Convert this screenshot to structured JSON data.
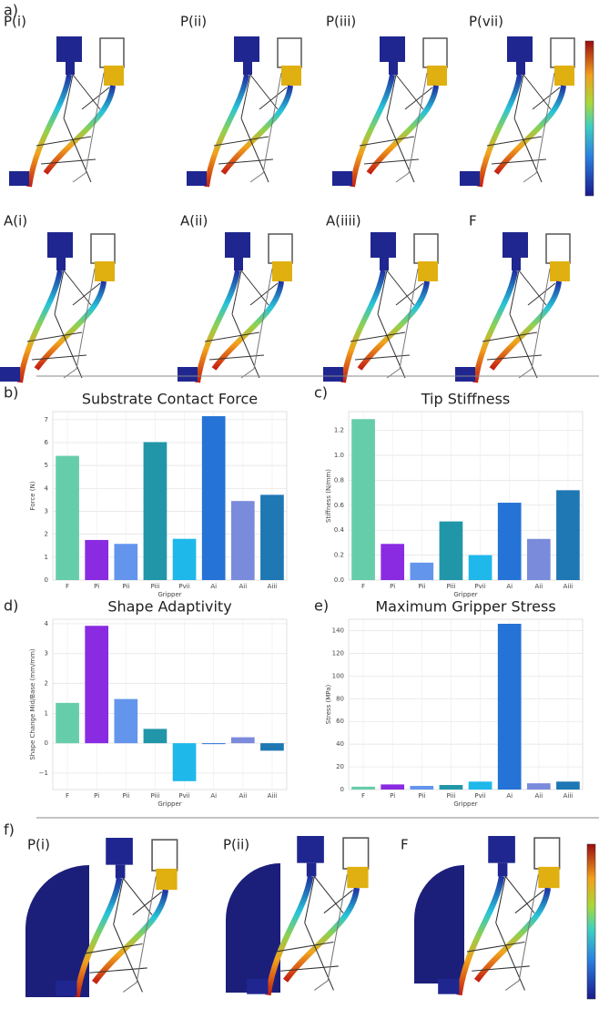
{
  "panels": {
    "a": "a)",
    "b": "b)",
    "c": "c)",
    "d": "d)",
    "e": "e)",
    "f": "f)"
  },
  "panel_a_images": [
    "P(i)",
    "P(ii)",
    "P(iii)",
    "P(vii)",
    "A(i)",
    "A(ii)",
    "A(iiii)",
    "F"
  ],
  "panel_f_images": [
    "P(i)",
    "P(ii)",
    "F"
  ],
  "chart_data": [
    {
      "type": "bar",
      "title": "Substrate Contact Force",
      "x_label": "Gripper",
      "y_label": "Force (N)",
      "categories": [
        "F",
        "Pi",
        "Pii",
        "Piii",
        "Pvii",
        "Ai",
        "Aii",
        "Aiii"
      ],
      "values": [
        5.42,
        1.75,
        1.58,
        6.02,
        1.8,
        7.15,
        3.45,
        3.72
      ],
      "colors": [
        "#66cdaa",
        "#8a2be2",
        "#6495ed",
        "#2196a8",
        "#1eb8ea",
        "#2573d6",
        "#7b8bdb",
        "#1f77b4"
      ],
      "ylim": [
        0,
        7.35
      ],
      "yticks": [
        0,
        1,
        2,
        3,
        4,
        5,
        6,
        7
      ],
      "grid": true
    },
    {
      "type": "bar",
      "title": "Tip Stiffness",
      "x_label": "Gripper",
      "y_label": "Stiffness (N/mm)",
      "categories": [
        "F",
        "Pi",
        "Pii",
        "Piii",
        "Pvii",
        "Ai",
        "Aii",
        "Aiii"
      ],
      "values": [
        1.29,
        0.29,
        0.14,
        0.47,
        0.2,
        0.62,
        0.33,
        0.72
      ],
      "colors": [
        "#66cdaa",
        "#8a2be2",
        "#6495ed",
        "#2196a8",
        "#1eb8ea",
        "#2573d6",
        "#7b8bdb",
        "#1f77b4"
      ],
      "ylim": [
        0,
        1.35
      ],
      "yticks": [
        {
          "value": 0,
          "label": "0.0"
        },
        0.2,
        0.4,
        0.6,
        0.8,
        {
          "value": 1,
          "label": "1.0"
        },
        1.2
      ],
      "grid": true
    },
    {
      "type": "bar",
      "title": "Shape Adaptivity",
      "x_label": "Gripper",
      "y_label": "Shape Change Mid/Base (mm/mm)",
      "categories": [
        "F",
        "Pi",
        "Pii",
        "Piii",
        "Pvii",
        "Ai",
        "Aii",
        "Aiii"
      ],
      "values": [
        1.35,
        3.93,
        1.48,
        0.48,
        -1.27,
        -0.03,
        0.2,
        -0.25
      ],
      "colors": [
        "#66cdaa",
        "#8a2be2",
        "#6495ed",
        "#2196a8",
        "#1eb8ea",
        "#2573d6",
        "#7b8bdb",
        "#1f77b4"
      ],
      "ylim": [
        -1.55,
        4.15
      ],
      "yticks": [
        {
          "value": -1,
          "label": "−1"
        },
        0,
        1,
        2,
        3,
        4
      ],
      "grid": true
    },
    {
      "type": "bar",
      "title": "Maximum Gripper Stress",
      "x_label": "Gripper",
      "y_label": "Stress (MPa)",
      "categories": [
        "F",
        "Pi",
        "Pii",
        "Piii",
        "Pvii",
        "Ai",
        "Aii",
        "Aiii"
      ],
      "values": [
        2.5,
        4.5,
        3.2,
        4.0,
        7.0,
        146,
        5.5,
        7.0
      ],
      "colors": [
        "#66cdaa",
        "#8a2be2",
        "#6495ed",
        "#2196a8",
        "#1eb8ea",
        "#2573d6",
        "#7b8bdb",
        "#1f77b4"
      ],
      "ylim": [
        0,
        150
      ],
      "yticks": [
        0,
        20,
        40,
        60,
        80,
        100,
        120,
        140
      ],
      "grid": true
    }
  ]
}
